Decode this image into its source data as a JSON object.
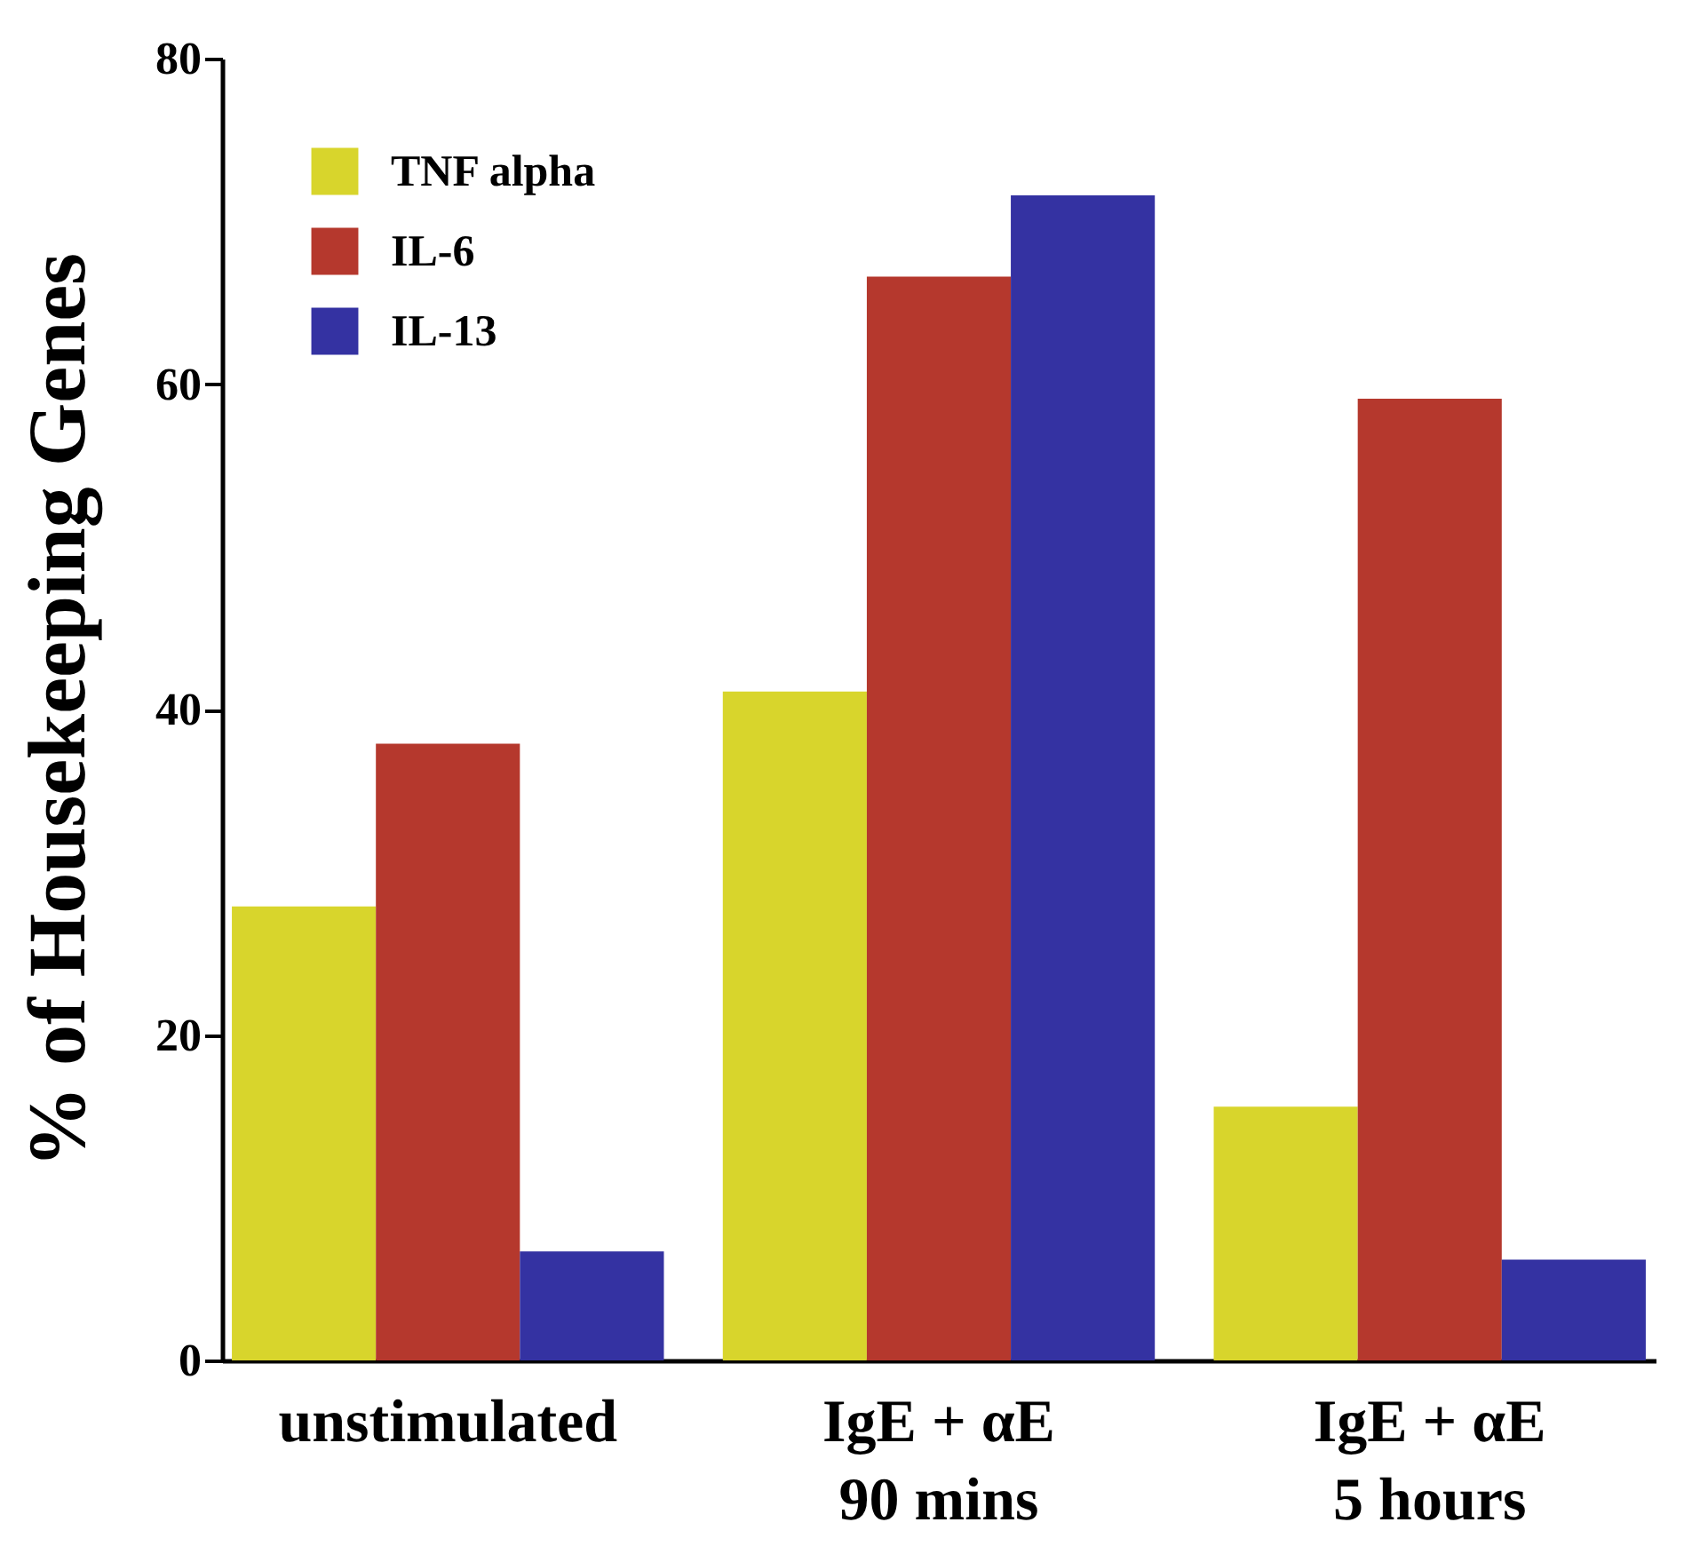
{
  "chart_data": {
    "type": "bar",
    "ylabel": "% of Housekeeping Genes",
    "categories": [
      "unstimulated",
      "IgE + αE\n90 mins",
      "IgE + αE\n5 hours"
    ],
    "series": [
      {
        "name": "TNF alpha",
        "color": "#d8d52c",
        "values": [
          27.9,
          41.1,
          15.6
        ]
      },
      {
        "name": "IL-6",
        "color": "#b5382d",
        "values": [
          37.9,
          66.6,
          59.1
        ]
      },
      {
        "name": "IL-13",
        "color": "#3432a2",
        "values": [
          6.7,
          71.6,
          6.2
        ]
      }
    ],
    "ylim": [
      0,
      80
    ],
    "yticks": [
      0,
      20,
      40,
      60,
      80
    ],
    "grid": false,
    "legend": "top left"
  }
}
